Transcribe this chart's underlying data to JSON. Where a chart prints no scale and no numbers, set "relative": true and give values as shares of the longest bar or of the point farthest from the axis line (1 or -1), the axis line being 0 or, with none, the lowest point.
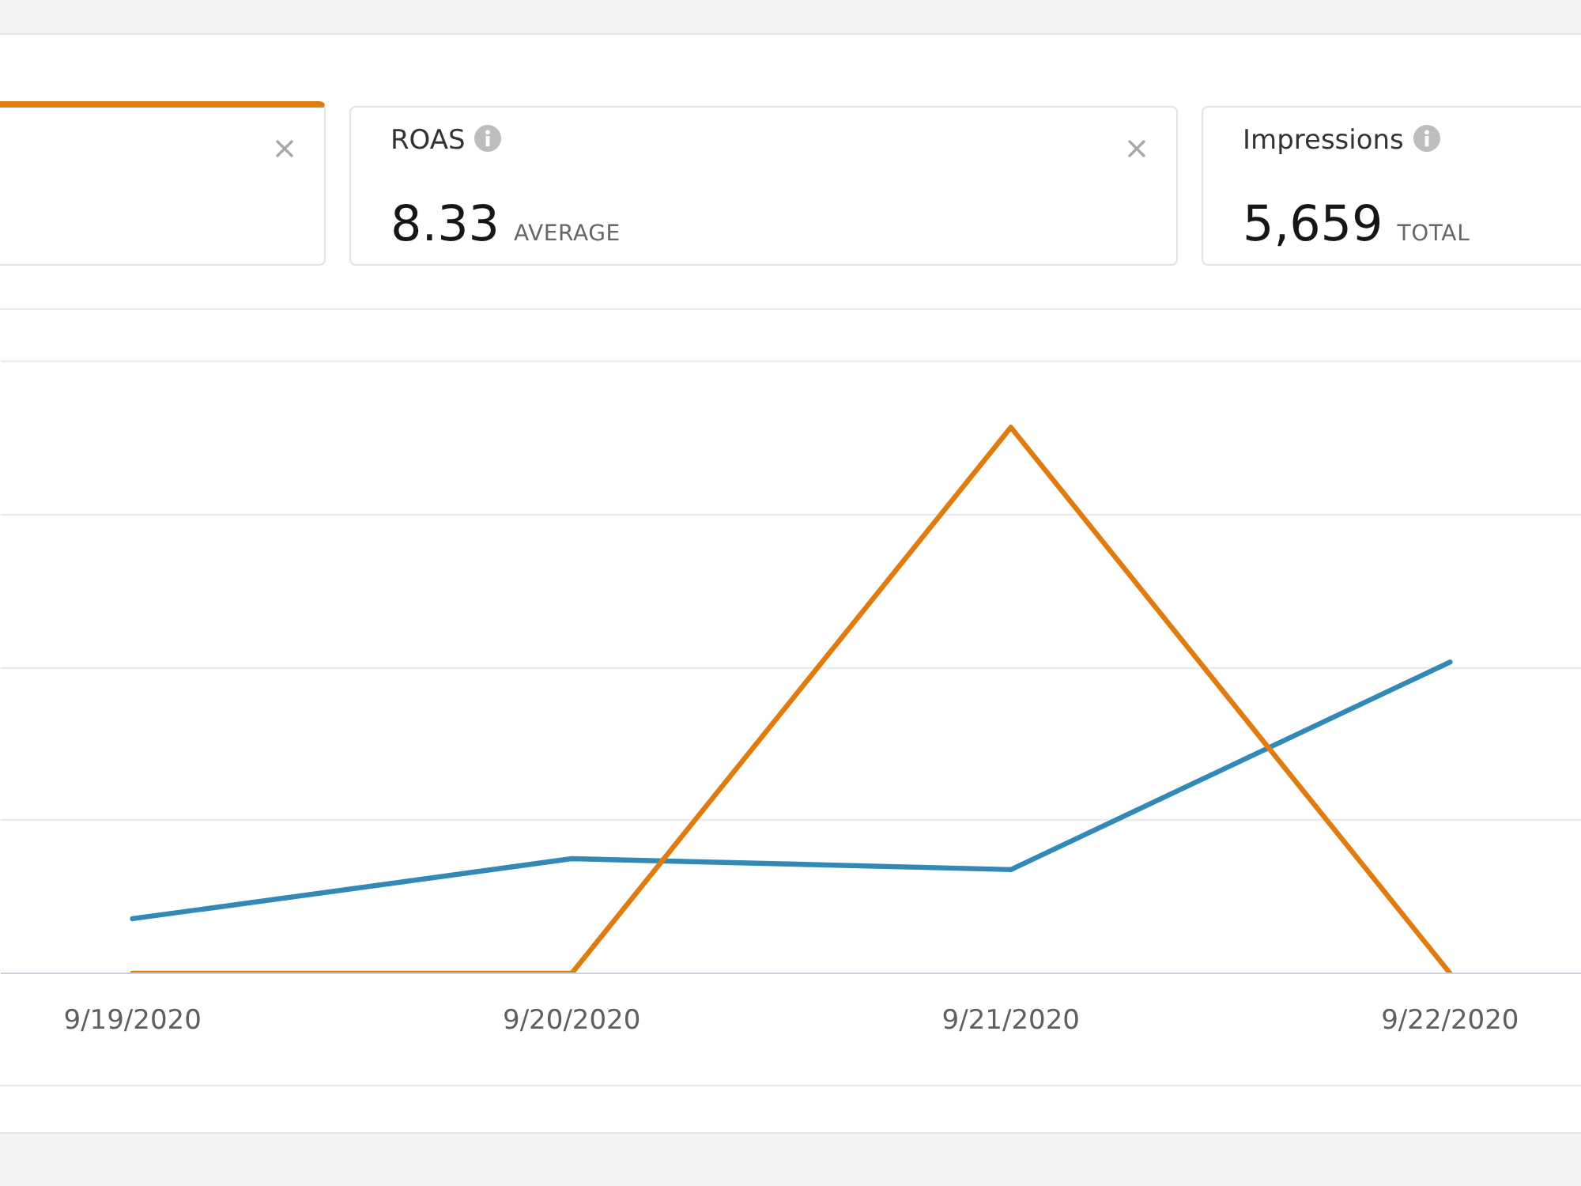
{
  "chart_data": [
    {
      "type": "other",
      "annotations": [
        "ROAS",
        "8.33",
        "AVERAGE",
        "Impressions",
        "5,659",
        "TOTAL"
      ]
    },
    {
      "type": "line",
      "relative": true,
      "categories": [
        "9/19/2020",
        "9/20/2020",
        "9/21/2020",
        "9/22/2020"
      ],
      "series": [
        {
          "color": "#3389b5",
          "values": [
            0.1,
            0.21,
            0.19,
            0.57
          ]
        },
        {
          "color": "#e07c0e",
          "values": [
            0,
            0,
            1,
            0
          ]
        }
      ],
      "grid": "y",
      "line_style": "solid"
    }
  ]
}
